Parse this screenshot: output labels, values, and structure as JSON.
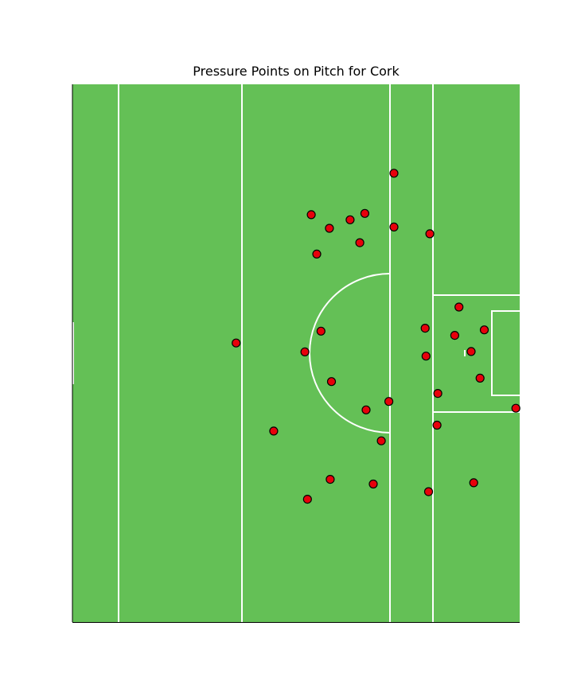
{
  "chart_data": {
    "type": "scatter",
    "title": "Pressure Points on Pitch for Cork",
    "xlabel": "",
    "ylabel": "",
    "xlim": [
      0,
      106
    ],
    "ylim": [
      0,
      127
    ],
    "grid": false,
    "colors": {
      "pitch": "#64c056",
      "lines": "#ffffff",
      "marker": "#e8000b",
      "marker_edge": "#000000"
    },
    "series": [
      {
        "points": [
          {
            "x": 76.2,
            "y": 106.0
          },
          {
            "x": 69.3,
            "y": 96.5
          },
          {
            "x": 65.8,
            "y": 95.0
          },
          {
            "x": 56.6,
            "y": 96.2
          },
          {
            "x": 60.9,
            "y": 93.0
          },
          {
            "x": 76.2,
            "y": 93.3
          },
          {
            "x": 84.7,
            "y": 91.7
          },
          {
            "x": 68.1,
            "y": 89.6
          },
          {
            "x": 57.9,
            "y": 86.9
          },
          {
            "x": 91.6,
            "y": 74.4
          },
          {
            "x": 83.6,
            "y": 69.4
          },
          {
            "x": 97.6,
            "y": 69.0
          },
          {
            "x": 90.6,
            "y": 67.7
          },
          {
            "x": 58.9,
            "y": 68.7
          },
          {
            "x": 38.8,
            "y": 65.9
          },
          {
            "x": 55.1,
            "y": 63.8
          },
          {
            "x": 94.5,
            "y": 63.9
          },
          {
            "x": 83.8,
            "y": 62.8
          },
          {
            "x": 96.6,
            "y": 57.6
          },
          {
            "x": 61.4,
            "y": 56.8
          },
          {
            "x": 86.6,
            "y": 54.0
          },
          {
            "x": 75.0,
            "y": 52.1
          },
          {
            "x": 69.6,
            "y": 50.1
          },
          {
            "x": 105.1,
            "y": 50.5
          },
          {
            "x": 47.7,
            "y": 45.1
          },
          {
            "x": 86.4,
            "y": 46.5
          },
          {
            "x": 73.2,
            "y": 42.8
          },
          {
            "x": 61.1,
            "y": 33.7
          },
          {
            "x": 71.3,
            "y": 32.6
          },
          {
            "x": 95.1,
            "y": 32.9
          },
          {
            "x": 84.4,
            "y": 30.8
          },
          {
            "x": 55.7,
            "y": 29.0
          }
        ]
      }
    ]
  }
}
